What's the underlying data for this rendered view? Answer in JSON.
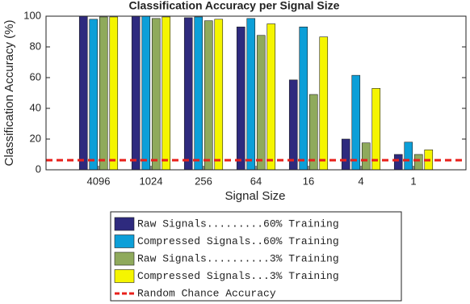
{
  "chart_data": {
    "type": "bar",
    "title": "Classification Accuracy per Signal Size",
    "x_label": "Signal Size",
    "y_label": "Classification Accuracy (%)",
    "categories": [
      "4096",
      "1024",
      "256",
      "64",
      "16",
      "4",
      "1"
    ],
    "series": [
      {
        "name": "Raw Signals.........60% Training",
        "color": "#2e2a7e",
        "values": [
          100,
          100,
          99,
          93,
          58.5,
          20,
          10
        ]
      },
      {
        "name": "Compressed Signals..60% Training",
        "color": "#0c9fd8",
        "values": [
          98,
          100,
          99.5,
          98.5,
          93,
          61.5,
          18
        ]
      },
      {
        "name": "Raw Signals..........3% Training",
        "color": "#8faa5c",
        "values": [
          99.5,
          98.5,
          97,
          87.5,
          49,
          17.5,
          10
        ]
      },
      {
        "name": "Compressed Signals...3% Training",
        "color": "#f5f500",
        "values": [
          99.5,
          99.5,
          98,
          95,
          86.5,
          53,
          13
        ]
      }
    ],
    "reference_lines": [
      {
        "name": "Random Chance Accuracy",
        "value": 6.25,
        "color": "#e8201b"
      }
    ],
    "ylim": [
      0,
      100
    ],
    "yticks": [
      0,
      20,
      40,
      60,
      80,
      100
    ],
    "grid": false
  }
}
